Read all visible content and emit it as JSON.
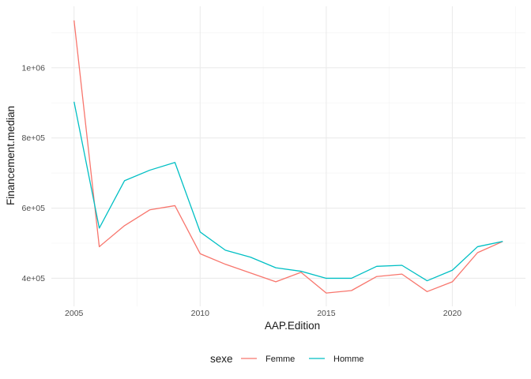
{
  "chart_data": {
    "type": "line",
    "xlabel": "AAP.Edition",
    "ylabel": "Financement.median",
    "x": [
      2005,
      2006,
      2007,
      2008,
      2009,
      2010,
      2011,
      2012,
      2013,
      2014,
      2015,
      2016,
      2017,
      2018,
      2019,
      2020,
      2021,
      2022
    ],
    "series": [
      {
        "name": "Femme",
        "color": "#F8766D",
        "values": [
          1135000,
          490000,
          550000,
          595000,
          607000,
          470000,
          440000,
          415000,
          390000,
          417000,
          358000,
          365000,
          405000,
          412000,
          362000,
          390000,
          473000,
          505000
        ]
      },
      {
        "name": "Homme",
        "color": "#00BFC4",
        "values": [
          903000,
          543000,
          678000,
          708000,
          730000,
          532000,
          480000,
          460000,
          430000,
          420000,
          400000,
          400000,
          434000,
          437000,
          393000,
          423000,
          490000,
          505000
        ]
      }
    ],
    "xlim": [
      2004.1,
      2022.9
    ],
    "ylim": [
      320000,
      1175000
    ],
    "x_ticks": [
      2005,
      2010,
      2015,
      2020
    ],
    "x_tick_labels": [
      "2005",
      "2010",
      "2015",
      "2020"
    ],
    "y_ticks": [
      400000,
      600000,
      800000,
      1000000
    ],
    "y_tick_labels": [
      "4e+05",
      "6e+05",
      "8e+05",
      "1e+06"
    ],
    "x_minor": [
      2007.5,
      2012.5,
      2017.5,
      2022.5
    ],
    "y_minor": [
      500000,
      700000,
      900000,
      1100000
    ],
    "grid": true,
    "legend": {
      "title": "sexe",
      "position": "bottom"
    }
  }
}
